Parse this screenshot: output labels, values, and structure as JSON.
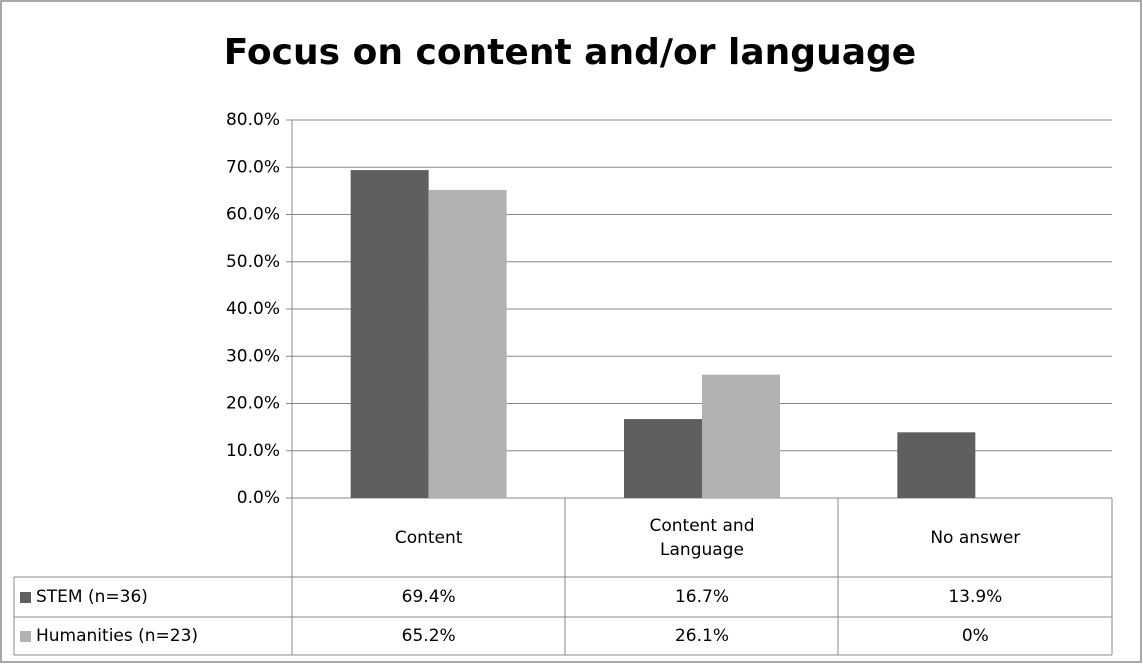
{
  "chart_data": {
    "type": "bar",
    "title": "Focus on content and/or language",
    "categories": [
      "Content",
      "Content and Language",
      "No answer"
    ],
    "series": [
      {
        "name": "STEM (n=36)",
        "color": "#5f5f5f",
        "values": [
          69.4,
          16.7,
          13.9
        ],
        "value_labels": [
          "69.4%",
          "16.7%",
          "13.9%"
        ]
      },
      {
        "name": "Humanities (n=23)",
        "color": "#b2b2b2",
        "values": [
          65.2,
          26.1,
          0
        ],
        "value_labels": [
          "65.2%",
          "26.1%",
          "0%"
        ]
      }
    ],
    "ylim": [
      0,
      80
    ],
    "yticks": [
      {
        "value": 0,
        "label": "0.0%"
      },
      {
        "value": 10,
        "label": "10.0%"
      },
      {
        "value": 20,
        "label": "20.0%"
      },
      {
        "value": 30,
        "label": "30.0%"
      },
      {
        "value": 40,
        "label": "40.0%"
      },
      {
        "value": 50,
        "label": "50.0%"
      },
      {
        "value": 60,
        "label": "60.0%"
      },
      {
        "value": 70,
        "label": "70.0%"
      },
      {
        "value": 80,
        "label": "80.0%"
      }
    ],
    "grid": true
  }
}
